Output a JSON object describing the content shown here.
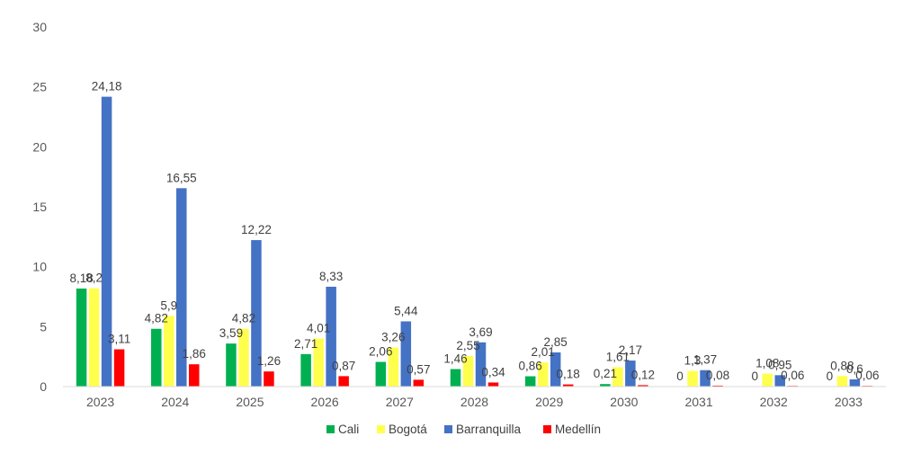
{
  "chart_data": {
    "type": "bar",
    "title": "",
    "xlabel": "",
    "ylabel": "",
    "categories": [
      "2023",
      "2024",
      "2025",
      "2026",
      "2027",
      "2028",
      "2029",
      "2030",
      "2031",
      "2032",
      "2033"
    ],
    "ylim": [
      0,
      30
    ],
    "yticks": [
      0,
      5,
      10,
      15,
      20,
      25,
      30
    ],
    "grid": false,
    "legend_position": "bottom",
    "series": [
      {
        "name": "Cali",
        "color": "#00b050",
        "values": [
          8.18,
          4.82,
          3.59,
          2.71,
          2.06,
          1.46,
          0.86,
          0.21,
          0,
          0,
          0
        ],
        "labels": [
          "8,18",
          "4,82",
          "3,59",
          "2,71",
          "2,06",
          "1,46",
          "0,86",
          "0,21",
          "0",
          "0",
          "0"
        ]
      },
      {
        "name": "Bogotá",
        "color": "#ffff4d",
        "values": [
          8.2,
          5.9,
          4.82,
          4.01,
          3.26,
          2.55,
          2.01,
          1.61,
          1.3,
          1.08,
          0.88
        ],
        "labels": [
          "8,2",
          "5,9",
          "4,82",
          "4,01",
          "3,26",
          "2,55",
          "2,01",
          "1,61",
          "1,3",
          "1,08",
          "0,88"
        ]
      },
      {
        "name": "Barranquilla",
        "color": "#4472c4",
        "values": [
          24.18,
          16.55,
          12.22,
          8.33,
          5.44,
          3.69,
          2.85,
          2.17,
          1.37,
          0.95,
          0.6
        ],
        "labels": [
          "24,18",
          "16,55",
          "12,22",
          "8,33",
          "5,44",
          "3,69",
          "2,85",
          "2,17",
          "1,37",
          "0,95",
          "0,6"
        ]
      },
      {
        "name": "Medellín",
        "color": "#ff0000",
        "values": [
          3.11,
          1.86,
          1.26,
          0.87,
          0.57,
          0.34,
          0.18,
          0.12,
          0.08,
          0.06,
          0.06
        ],
        "labels": [
          "3,11",
          "1,86",
          "1,26",
          "0,87",
          "0,57",
          "0,34",
          "0,18",
          "0,12",
          "0,08",
          "0,06",
          "0,06"
        ]
      }
    ]
  }
}
